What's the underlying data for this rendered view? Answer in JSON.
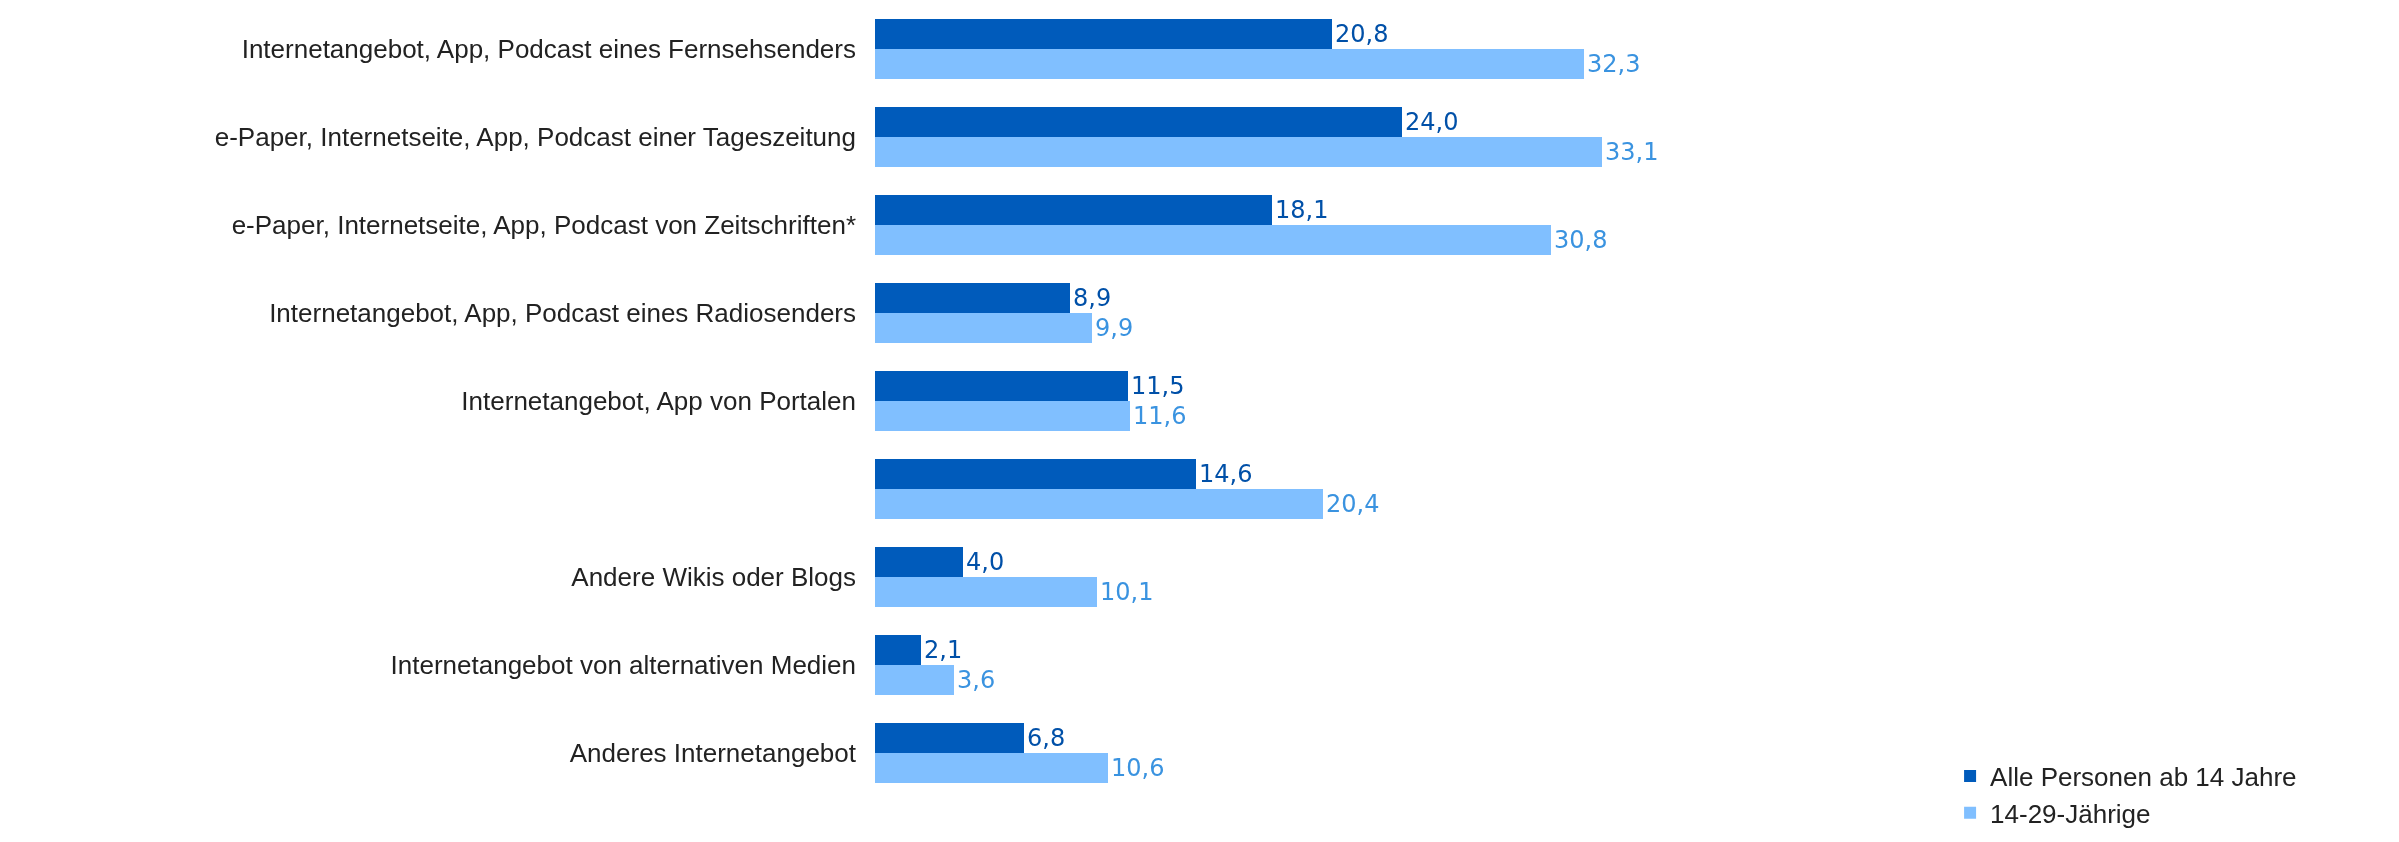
{
  "chart_data": {
    "type": "bar",
    "orientation": "horizontal",
    "categories": [
      "Internetangebot, App, Podcast eines Fernsehsenders",
      "e-Paper, Internetseite, App, Podcast einer Tageszeitung",
      "e-Paper, Internetseite, App, Podcast von Zeitschriften*",
      "Internetangebot, App, Podcast eines Radiosenders",
      "Internetangebot, App von Portalen",
      null,
      "Andere Wikis oder Blogs",
      "Internetangebot von alternativen Medien",
      "Anderes Internetangebot"
    ],
    "series": [
      {
        "name": "Alle Personen ab 14 Jahre",
        "color": "#005bbb",
        "values": [
          20.8,
          24.0,
          18.1,
          8.9,
          11.5,
          14.6,
          4.0,
          2.1,
          6.8
        ],
        "value_labels": [
          "20,8",
          "24,0",
          "18,1",
          "8,9",
          "11,5",
          "14,6",
          "4,0",
          "2,1",
          "6,8"
        ]
      },
      {
        "name": "14-29-Jährige",
        "color": "#80bfff",
        "values": [
          32.3,
          33.1,
          30.8,
          9.9,
          11.6,
          20.4,
          10.1,
          3.6,
          10.6
        ],
        "value_labels": [
          "32,3",
          "33,1",
          "30,8",
          "9,9",
          "11,6",
          "20,4",
          "10,1",
          "3,6",
          "10,6"
        ]
      }
    ],
    "legend": "bottom right"
  }
}
